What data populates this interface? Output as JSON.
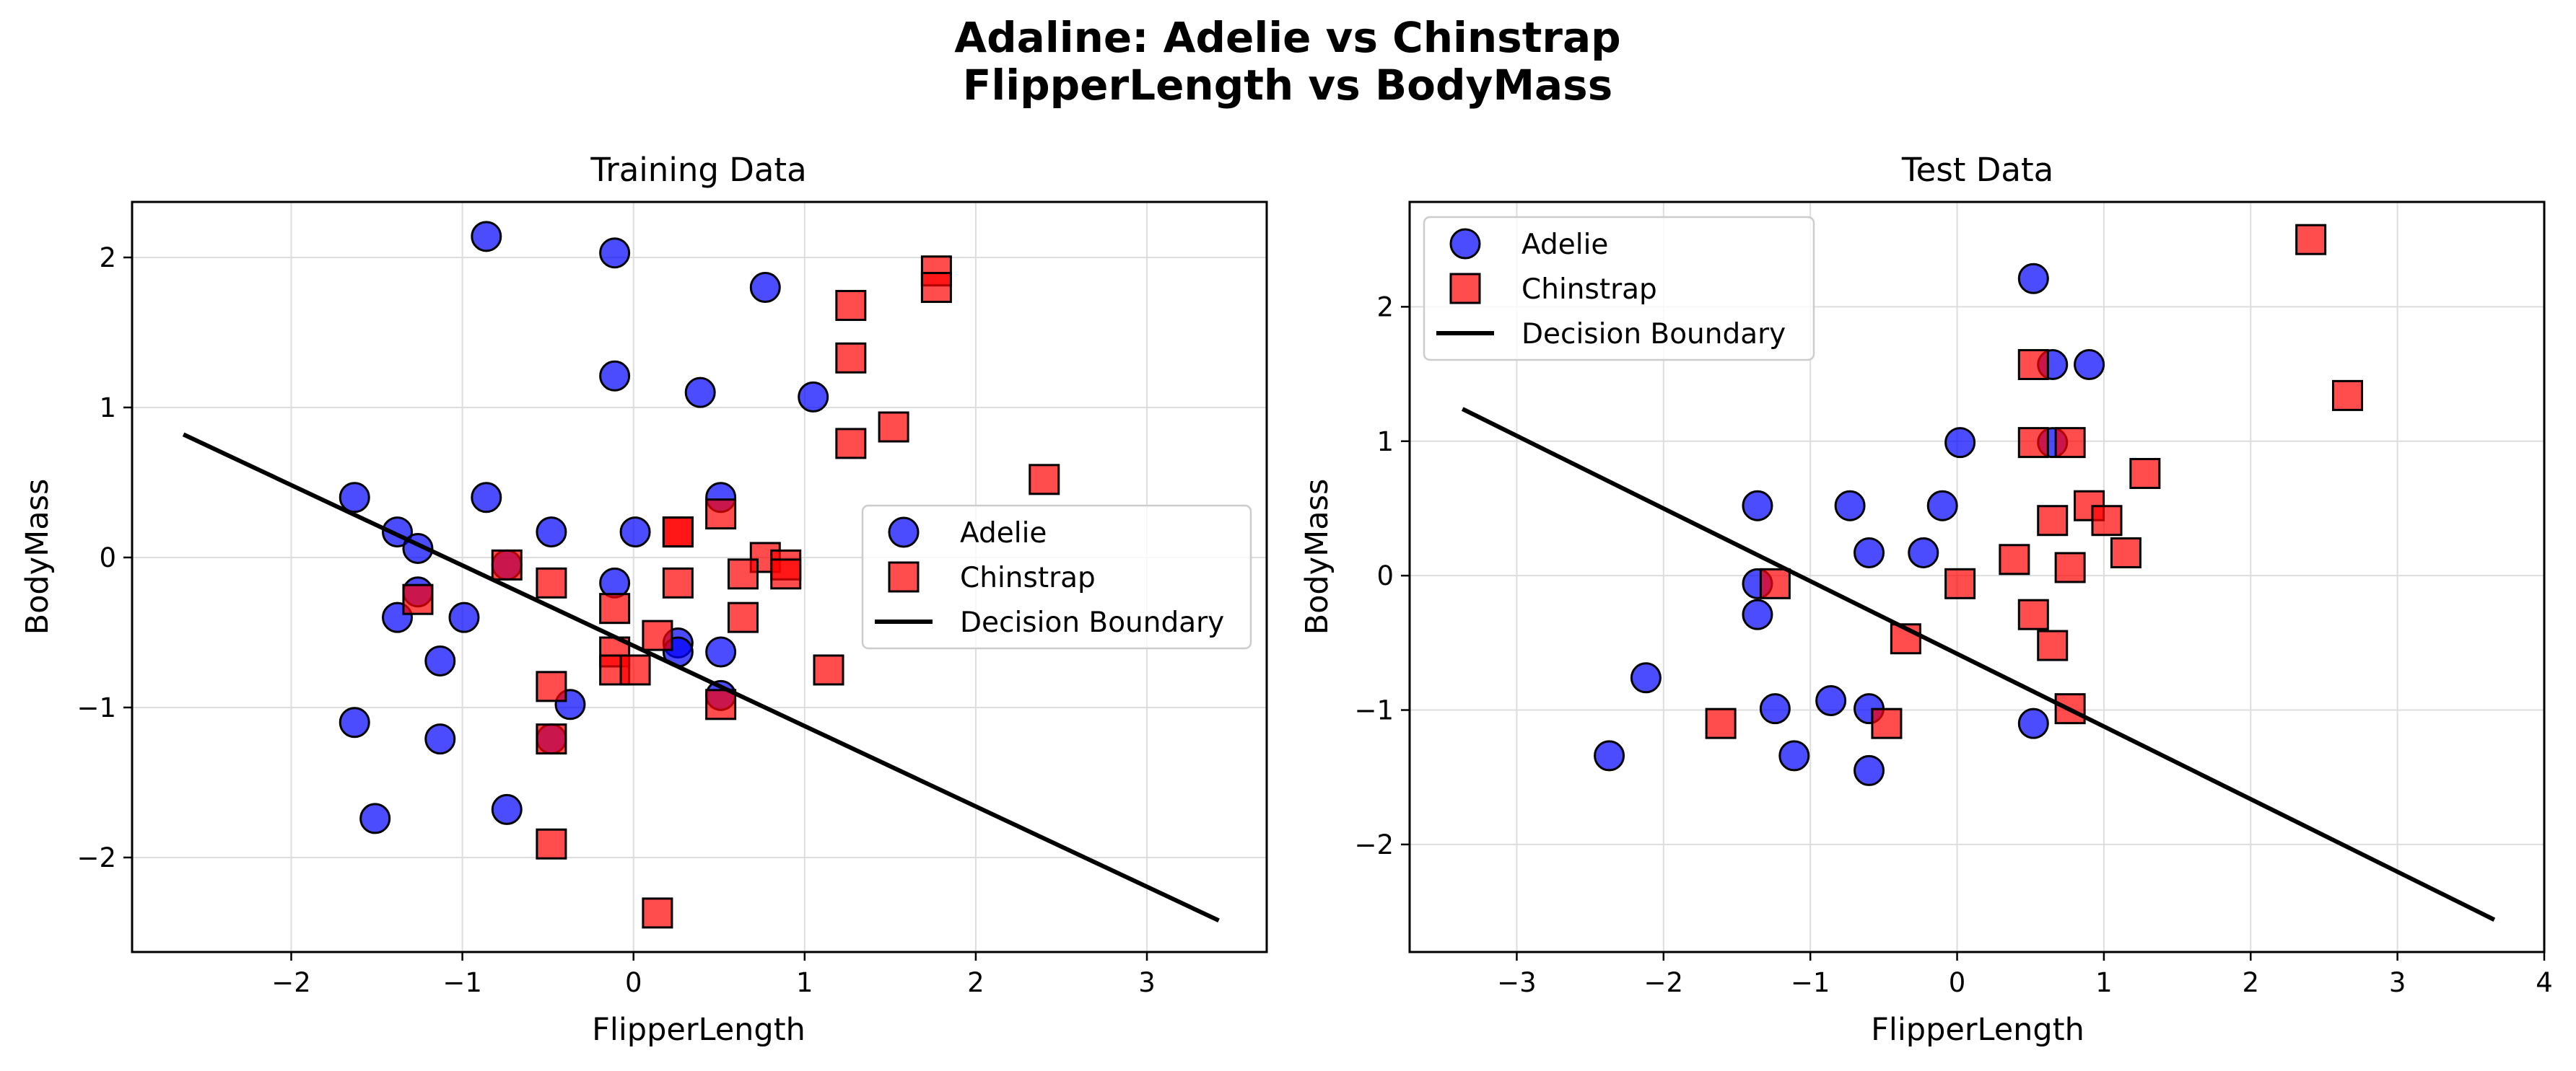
{
  "figure": {
    "title_line1": "Adaline: Adelie vs Chinstrap",
    "title_line2": "FlipperLength vs BodyMass"
  },
  "colors": {
    "adelie": "#0000ff",
    "chinstrap": "#ff0000",
    "boundary": "#000000",
    "grid": "#dddddd",
    "marker_edge": "#000000"
  },
  "chart_data": [
    {
      "type": "scatter",
      "title": "Training Data",
      "xlabel": "FlipperLength",
      "ylabel": "BodyMass",
      "xlim": [
        -2.93,
        3.7
      ],
      "ylim": [
        -2.63,
        2.37
      ],
      "xticks": [
        -2,
        -1,
        0,
        1,
        2,
        3
      ],
      "yticks": [
        -2,
        -1,
        0,
        1,
        2
      ],
      "tick_labels_x": [
        "−2",
        "−1",
        "0",
        "1",
        "2",
        "3"
      ],
      "tick_labels_y": [
        "−2",
        "−1",
        "0",
        "1",
        "2"
      ],
      "grid": true,
      "legend_position": "center-right",
      "legend": [
        "Adelie",
        "Chinstrap",
        "Decision Boundary"
      ],
      "series": [
        {
          "name": "Adelie",
          "marker": "circle",
          "points": [
            [
              -0.86,
              2.14
            ],
            [
              -0.11,
              2.03
            ],
            [
              0.77,
              1.8
            ],
            [
              -0.11,
              1.21
            ],
            [
              0.39,
              1.1
            ],
            [
              1.05,
              1.07
            ],
            [
              -1.63,
              0.4
            ],
            [
              -0.86,
              0.4
            ],
            [
              0.51,
              0.4
            ],
            [
              -1.38,
              0.17
            ],
            [
              -0.48,
              0.17
            ],
            [
              0.01,
              0.17
            ],
            [
              -1.26,
              0.06
            ],
            [
              -0.74,
              -0.05
            ],
            [
              -0.11,
              -0.17
            ],
            [
              -1.26,
              -0.23
            ],
            [
              -1.38,
              -0.4
            ],
            [
              -0.99,
              -0.4
            ],
            [
              0.26,
              -0.57
            ],
            [
              0.26,
              -0.63
            ],
            [
              0.51,
              -0.63
            ],
            [
              -1.13,
              -0.69
            ],
            [
              0.51,
              -0.92
            ],
            [
              -0.37,
              -0.98
            ],
            [
              -1.63,
              -1.1
            ],
            [
              -1.13,
              -1.21
            ],
            [
              -0.48,
              -1.21
            ],
            [
              -0.74,
              -1.68
            ],
            [
              -1.51,
              -1.74
            ]
          ]
        },
        {
          "name": "Chinstrap",
          "marker": "square",
          "points": [
            [
              1.77,
              1.91
            ],
            [
              1.77,
              1.8
            ],
            [
              1.27,
              1.68
            ],
            [
              1.27,
              1.33
            ],
            [
              1.52,
              0.87
            ],
            [
              1.27,
              0.76
            ],
            [
              2.4,
              0.52
            ],
            [
              0.51,
              0.29
            ],
            [
              0.26,
              0.17
            ],
            [
              0.26,
              0.17
            ],
            [
              0.77,
              0.0
            ],
            [
              -0.74,
              -0.05
            ],
            [
              0.89,
              -0.05
            ],
            [
              0.89,
              -0.11
            ],
            [
              0.64,
              -0.11
            ],
            [
              -0.48,
              -0.17
            ],
            [
              0.26,
              -0.17
            ],
            [
              -1.26,
              -0.28
            ],
            [
              -0.11,
              -0.34
            ],
            [
              0.64,
              -0.4
            ],
            [
              0.14,
              -0.52
            ],
            [
              -0.11,
              -0.63
            ],
            [
              -0.11,
              -0.75
            ],
            [
              0.01,
              -0.75
            ],
            [
              1.14,
              -0.75
            ],
            [
              -0.48,
              -0.86
            ],
            [
              0.51,
              -0.98
            ],
            [
              -0.48,
              -1.21
            ],
            [
              -0.48,
              -1.91
            ],
            [
              0.14,
              -2.37
            ]
          ]
        }
      ],
      "decision_boundary": {
        "x": [
          -2.63,
          3.42
        ],
        "y": [
          0.82,
          -2.42
        ]
      }
    },
    {
      "type": "scatter",
      "title": "Test Data",
      "xlabel": "FlipperLength",
      "ylabel": "BodyMass",
      "xlim": [
        -3.73,
        4.0
      ],
      "ylim": [
        -2.8,
        2.78
      ],
      "xticks": [
        -3,
        -2,
        -1,
        0,
        1,
        2,
        3,
        4
      ],
      "yticks": [
        -2,
        -1,
        0,
        1,
        2
      ],
      "tick_labels_x": [
        "−3",
        "−2",
        "−1",
        "0",
        "1",
        "2",
        "3",
        "4"
      ],
      "tick_labels_y": [
        "−2",
        "−1",
        "0",
        "1",
        "2"
      ],
      "grid": true,
      "legend_position": "upper-left",
      "legend": [
        "Adelie",
        "Chinstrap",
        "Decision Boundary"
      ],
      "series": [
        {
          "name": "Adelie",
          "marker": "circle",
          "points": [
            [
              0.52,
              2.21
            ],
            [
              0.65,
              1.57
            ],
            [
              0.9,
              1.57
            ],
            [
              0.02,
              0.99
            ],
            [
              0.65,
              0.99
            ],
            [
              -1.36,
              0.52
            ],
            [
              -0.73,
              0.52
            ],
            [
              -0.1,
              0.52
            ],
            [
              -0.6,
              0.17
            ],
            [
              -0.23,
              0.17
            ],
            [
              -1.36,
              -0.06
            ],
            [
              -1.36,
              -0.29
            ],
            [
              -2.12,
              -0.76
            ],
            [
              -0.86,
              -0.93
            ],
            [
              -1.24,
              -0.99
            ],
            [
              -0.6,
              -0.99
            ],
            [
              0.52,
              -1.1
            ],
            [
              -2.37,
              -1.34
            ],
            [
              -1.11,
              -1.34
            ],
            [
              -0.6,
              -1.45
            ]
          ]
        },
        {
          "name": "Chinstrap",
          "marker": "square",
          "points": [
            [
              2.41,
              2.5
            ],
            [
              0.52,
              1.57
            ],
            [
              2.66,
              1.34
            ],
            [
              0.52,
              0.99
            ],
            [
              0.77,
              0.99
            ],
            [
              1.28,
              0.76
            ],
            [
              0.9,
              0.52
            ],
            [
              1.02,
              0.41
            ],
            [
              0.65,
              0.41
            ],
            [
              1.15,
              0.17
            ],
            [
              0.39,
              0.12
            ],
            [
              0.77,
              0.06
            ],
            [
              -1.24,
              -0.06
            ],
            [
              0.02,
              -0.06
            ],
            [
              0.52,
              -0.29
            ],
            [
              -0.35,
              -0.47
            ],
            [
              0.65,
              -0.52
            ],
            [
              0.77,
              -0.99
            ],
            [
              -1.61,
              -1.1
            ],
            [
              -0.48,
              -1.1
            ]
          ]
        }
      ],
      "decision_boundary": {
        "x": [
          -3.37,
          3.66
        ],
        "y": [
          1.24,
          -2.56
        ]
      }
    }
  ]
}
